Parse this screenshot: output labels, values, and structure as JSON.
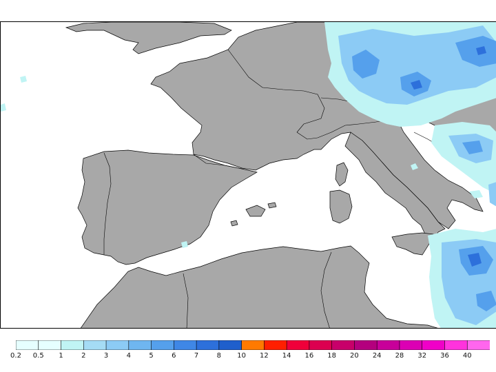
{
  "legend": {
    "colors": [
      "#e6ffff",
      "#c0f4f4",
      "#a5dcf5",
      "#8ccbf5",
      "#6fb6f0",
      "#55a0ec",
      "#3f87e6",
      "#2d70db",
      "#1f5fcc",
      "#ff7a00",
      "#ff1f00",
      "#f0003a",
      "#dc0050",
      "#c8006a",
      "#b4007e",
      "#c8009a",
      "#dc00b4",
      "#f000c8",
      "#ff33dd",
      "#ff66ee"
    ],
    "labels": [
      "0.2",
      "0.5",
      "1",
      "2",
      "3",
      "4",
      "5",
      "6",
      "7",
      "8",
      "10",
      "12",
      "14",
      "16",
      "18",
      "20",
      "24",
      "28",
      "32",
      "36",
      "40"
    ]
  },
  "map": {
    "land_color": "#a8a8a8",
    "sea_color": "#ffffff",
    "border_color": "#000000",
    "precip_colors": {
      "light": "#c0f4f4",
      "mid": "#8ccbf5",
      "heavy": "#55a0ec",
      "max": "#2d70db"
    }
  }
}
